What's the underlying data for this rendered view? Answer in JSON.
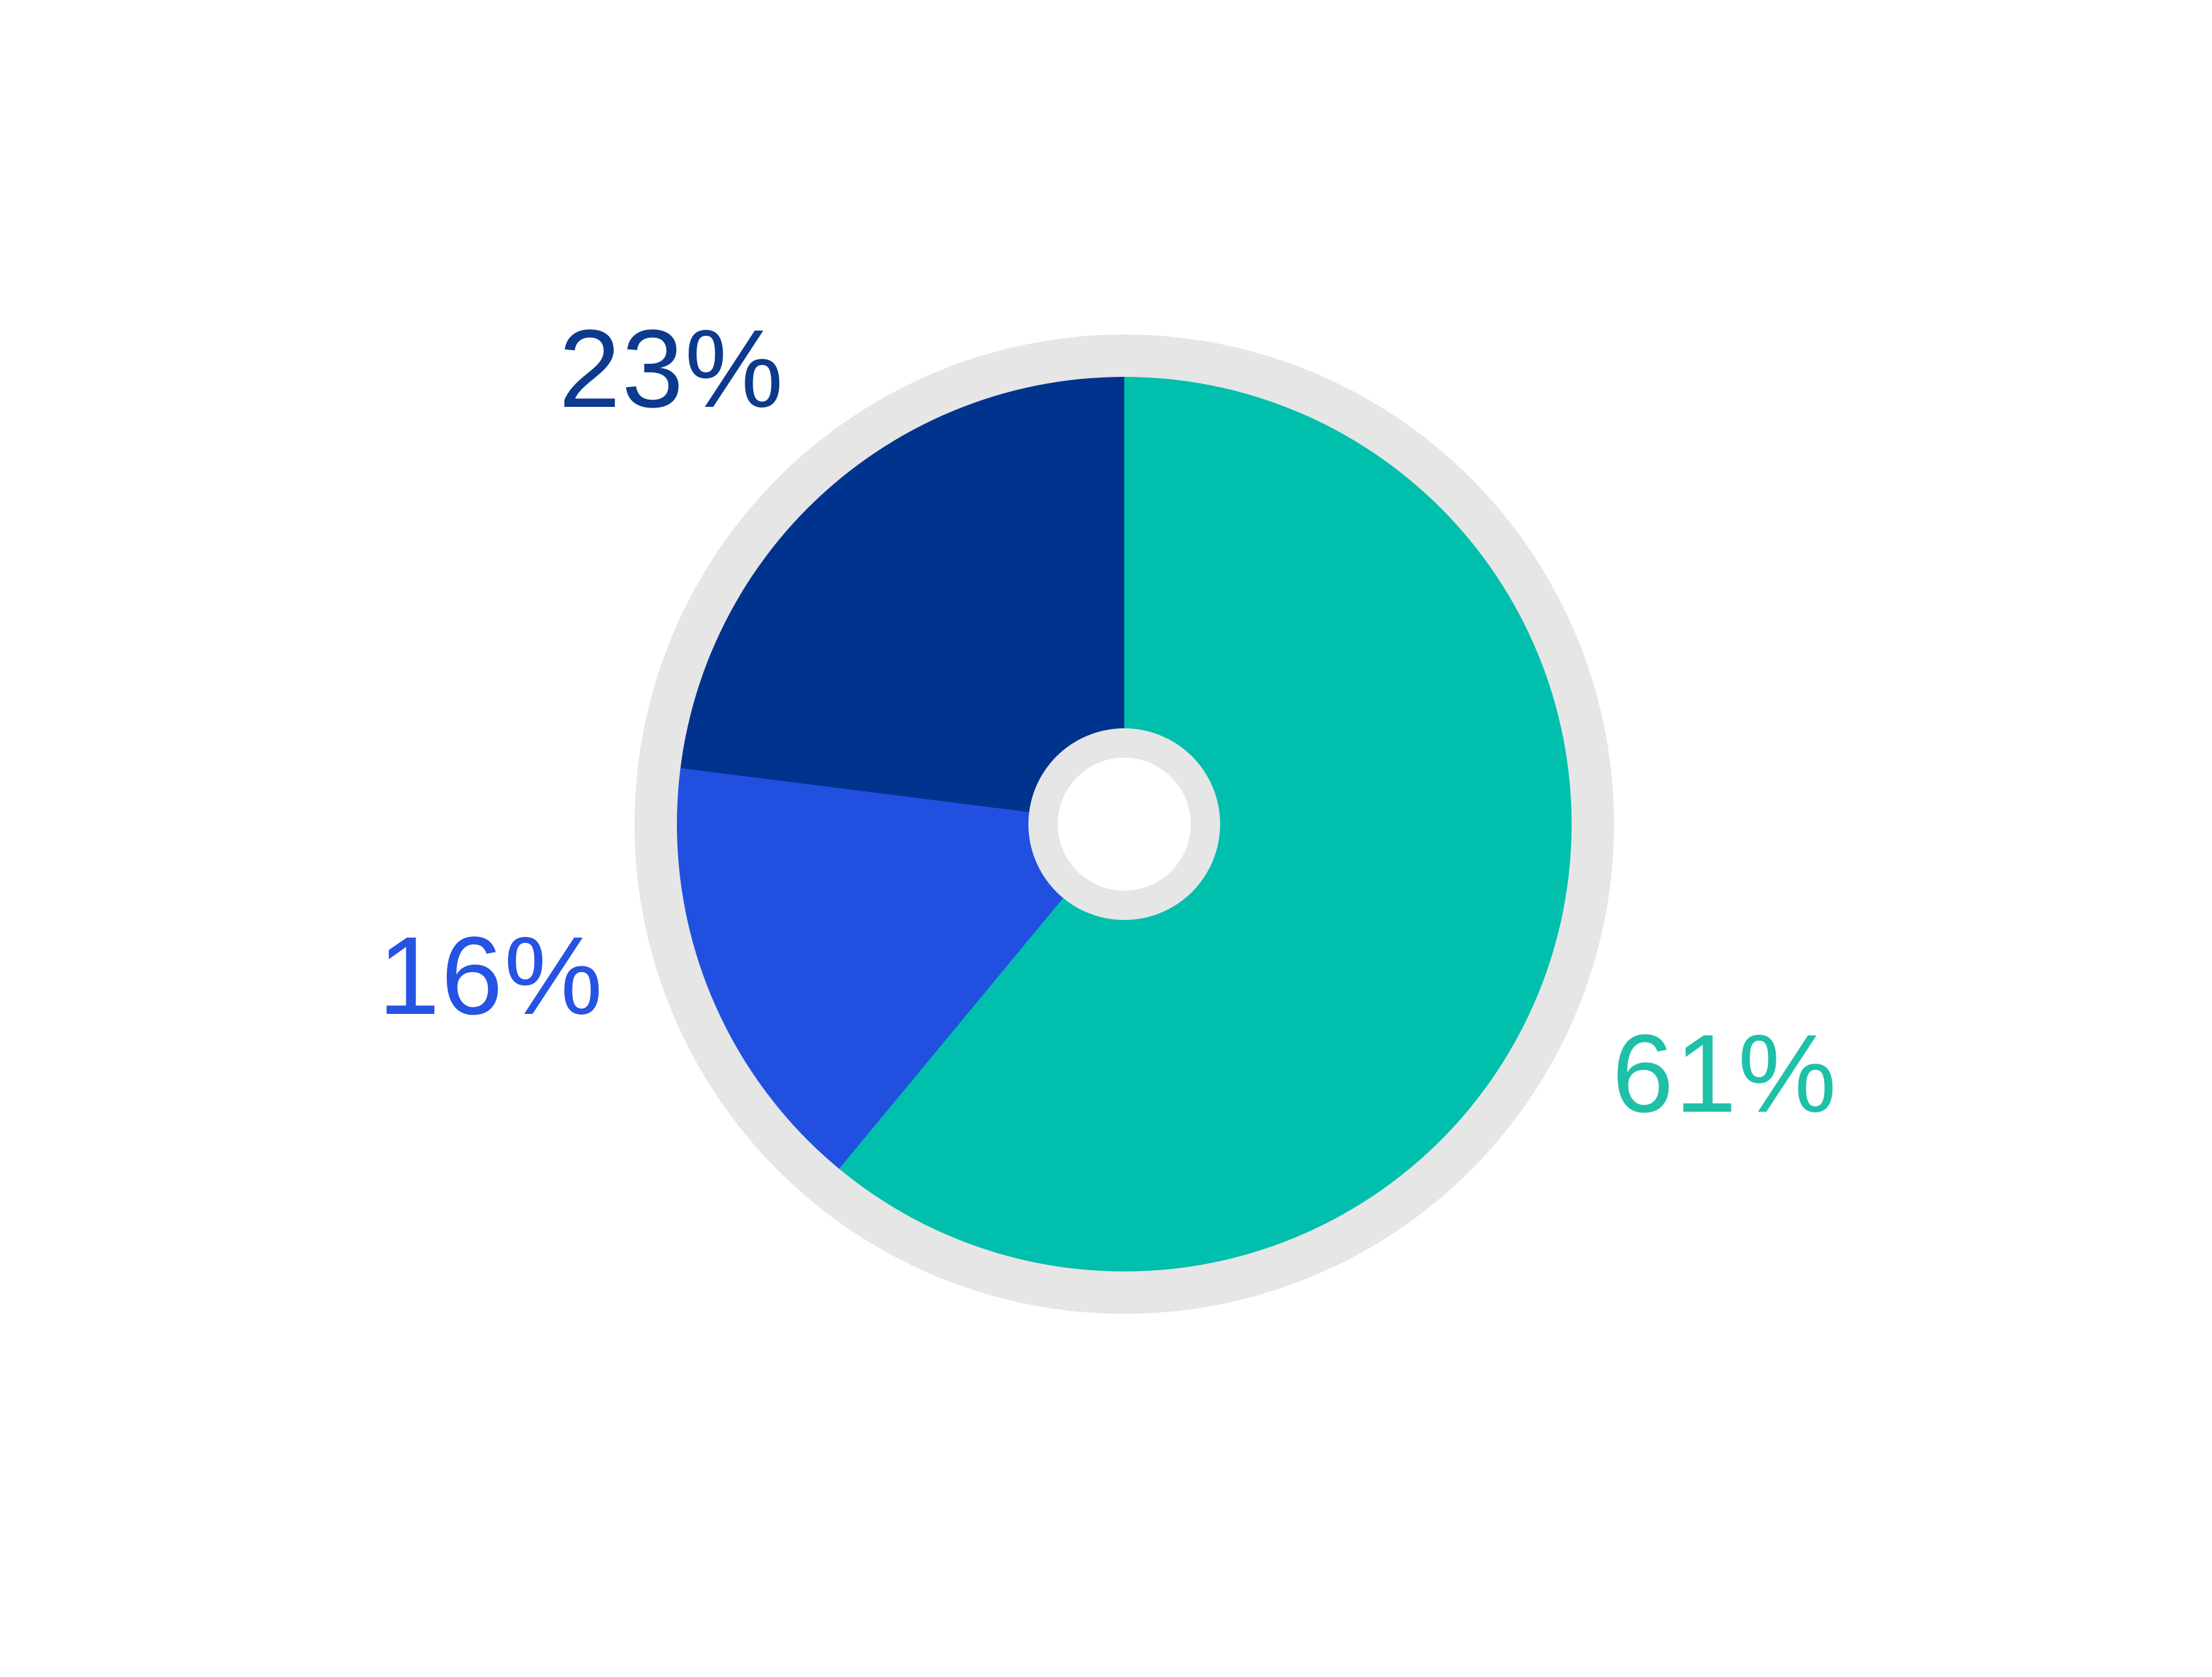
{
  "chart_data": {
    "type": "pie",
    "subtype": "donut",
    "title": "",
    "legend_position": "none",
    "grid": false,
    "start_angle_deg": 0,
    "direction": "clockwise",
    "slices": [
      {
        "label": "61%",
        "value": 61,
        "color": "#00bfac",
        "label_color": "#1fc0a7"
      },
      {
        "label": "16%",
        "value": 16,
        "color": "#2150e0",
        "label_color": "#2553e3"
      },
      {
        "label": "23%",
        "value": 23,
        "color": "#00338d",
        "label_color": "#0c3a8d"
      }
    ]
  },
  "colors": {
    "background": "#ffffff",
    "outer_ring": "#e6e6e6",
    "hole_ring": "#e6e6e6",
    "hole": "#ffffff"
  }
}
